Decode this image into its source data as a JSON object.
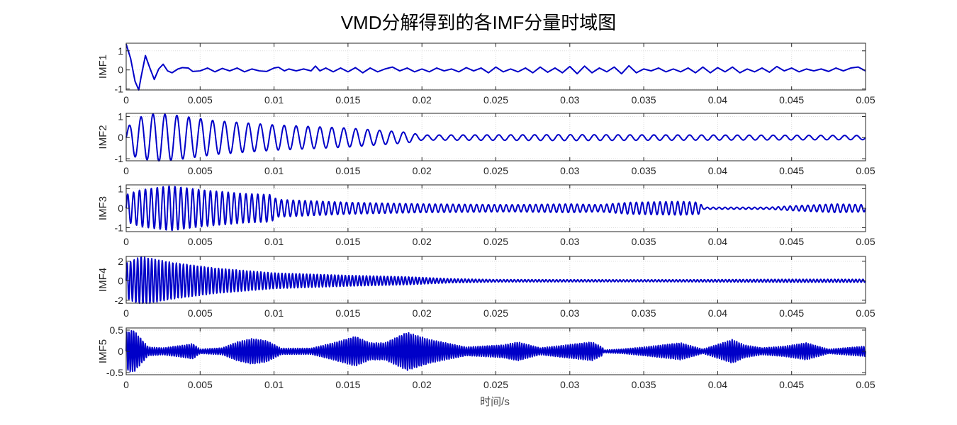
{
  "figure": {
    "title": "VMD分解得到的各IMF分量时域图",
    "xlabel": "时间/s"
  },
  "chart_data": [
    {
      "type": "line",
      "ylabel": "IMF1",
      "color": "#0000c8",
      "xlim": [
        0,
        0.05
      ],
      "ylim": [
        -1.05,
        1.4
      ],
      "yticks": [
        -1,
        0,
        1
      ],
      "xticks": [
        0,
        0.005,
        0.01,
        0.015,
        0.02,
        0.025,
        0.03,
        0.035,
        0.04,
        0.045,
        0.05
      ],
      "grid": true,
      "series": [
        {
          "x_start": 0,
          "x_end": 0.05,
          "points": [
            [
              0,
              1.35
            ],
            [
              0.0003,
              0.6
            ],
            [
              0.0006,
              -0.6
            ],
            [
              0.00085,
              -1.05
            ],
            [
              0.001,
              -0.4
            ],
            [
              0.0013,
              0.75
            ],
            [
              0.0016,
              0.1
            ],
            [
              0.0019,
              -0.5
            ],
            [
              0.0022,
              0.05
            ],
            [
              0.0025,
              0.3
            ],
            [
              0.0028,
              -0.05
            ],
            [
              0.0031,
              -0.15
            ],
            [
              0.0035,
              0.05
            ],
            [
              0.0038,
              0.12
            ],
            [
              0.0042,
              0.1
            ],
            [
              0.0045,
              -0.08
            ],
            [
              0.005,
              -0.05
            ],
            [
              0.0055,
              0.1
            ],
            [
              0.006,
              -0.1
            ],
            [
              0.0065,
              0.08
            ],
            [
              0.007,
              -0.05
            ],
            [
              0.0075,
              0.1
            ],
            [
              0.008,
              -0.1
            ],
            [
              0.0085,
              0.05
            ],
            [
              0.009,
              -0.05
            ],
            [
              0.0095,
              -0.08
            ],
            [
              0.01,
              0.1
            ],
            [
              0.0103,
              0.14
            ],
            [
              0.0107,
              -0.05
            ],
            [
              0.011,
              0.05
            ],
            [
              0.0115,
              -0.05
            ],
            [
              0.012,
              0.05
            ],
            [
              0.0125,
              -0.05
            ],
            [
              0.0128,
              0.2
            ],
            [
              0.0131,
              -0.05
            ],
            [
              0.0135,
              0.1
            ],
            [
              0.014,
              -0.1
            ],
            [
              0.0145,
              0.1
            ],
            [
              0.015,
              -0.1
            ],
            [
              0.0155,
              0.12
            ],
            [
              0.016,
              -0.15
            ],
            [
              0.0165,
              0.1
            ],
            [
              0.017,
              -0.1
            ],
            [
              0.0175,
              0.05
            ],
            [
              0.018,
              0.15
            ],
            [
              0.0185,
              -0.05
            ],
            [
              0.019,
              0.1
            ],
            [
              0.0195,
              -0.1
            ],
            [
              0.02,
              0.05
            ],
            [
              0.0205,
              -0.1
            ],
            [
              0.021,
              0.1
            ],
            [
              0.0215,
              -0.05
            ],
            [
              0.022,
              0.05
            ],
            [
              0.0225,
              -0.1
            ],
            [
              0.023,
              0.12
            ],
            [
              0.0235,
              -0.05
            ],
            [
              0.024,
              0.1
            ],
            [
              0.0245,
              -0.15
            ],
            [
              0.025,
              0.15
            ],
            [
              0.0255,
              -0.1
            ],
            [
              0.026,
              0.05
            ],
            [
              0.0265,
              -0.1
            ],
            [
              0.027,
              0.1
            ],
            [
              0.0275,
              -0.15
            ],
            [
              0.028,
              0.15
            ],
            [
              0.0285,
              -0.12
            ],
            [
              0.029,
              0.1
            ],
            [
              0.0295,
              -0.15
            ],
            [
              0.03,
              0.18
            ],
            [
              0.0305,
              -0.2
            ],
            [
              0.031,
              0.2
            ],
            [
              0.0315,
              -0.15
            ],
            [
              0.032,
              0.1
            ],
            [
              0.0325,
              -0.1
            ],
            [
              0.033,
              0.15
            ],
            [
              0.0335,
              -0.2
            ],
            [
              0.034,
              0.22
            ],
            [
              0.0345,
              -0.15
            ],
            [
              0.035,
              0.05
            ],
            [
              0.0355,
              -0.05
            ],
            [
              0.036,
              0.1
            ],
            [
              0.0365,
              -0.1
            ],
            [
              0.037,
              0.05
            ],
            [
              0.0375,
              -0.1
            ],
            [
              0.038,
              0.1
            ],
            [
              0.0385,
              -0.15
            ],
            [
              0.039,
              0.15
            ],
            [
              0.0395,
              -0.15
            ],
            [
              0.04,
              0.12
            ],
            [
              0.0405,
              -0.1
            ],
            [
              0.041,
              0.15
            ],
            [
              0.0415,
              -0.15
            ],
            [
              0.042,
              0.05
            ],
            [
              0.0425,
              -0.1
            ],
            [
              0.043,
              0.1
            ],
            [
              0.0435,
              -0.12
            ],
            [
              0.044,
              0.18
            ],
            [
              0.0445,
              -0.05
            ],
            [
              0.045,
              0.1
            ],
            [
              0.0455,
              -0.1
            ],
            [
              0.046,
              0.05
            ],
            [
              0.0465,
              -0.05
            ],
            [
              0.047,
              0.05
            ],
            [
              0.0475,
              -0.08
            ],
            [
              0.048,
              0.1
            ],
            [
              0.0485,
              -0.05
            ],
            [
              0.049,
              0.1
            ],
            [
              0.0495,
              0.15
            ],
            [
              0.05,
              -0.05
            ]
          ]
        }
      ]
    },
    {
      "type": "line",
      "ylabel": "IMF2",
      "color": "#0000c8",
      "xlim": [
        0,
        0.05
      ],
      "ylim": [
        -1.1,
        1.15
      ],
      "yticks": [
        -1,
        0,
        1
      ],
      "xticks": [
        0,
        0.005,
        0.01,
        0.015,
        0.02,
        0.025,
        0.03,
        0.035,
        0.04,
        0.045,
        0.05
      ],
      "grid": true,
      "series": [
        {
          "envelope": [
            [
              0,
              0.35
            ],
            [
              0.0005,
              0.9
            ],
            [
              0.002,
              1.15
            ],
            [
              0.0035,
              1.05
            ],
            [
              0.006,
              0.8
            ],
            [
              0.01,
              0.6
            ],
            [
              0.015,
              0.45
            ],
            [
              0.019,
              0.25
            ],
            [
              0.02,
              0.12
            ],
            [
              0.03,
              0.14
            ],
            [
              0.04,
              0.12
            ],
            [
              0.05,
              0.1
            ]
          ],
          "cycles": 62,
          "x_start": 0,
          "x_end": 0.05
        }
      ]
    },
    {
      "type": "line",
      "ylabel": "IMF3",
      "color": "#0000c8",
      "xlim": [
        0,
        0.05
      ],
      "ylim": [
        -1.2,
        1.2
      ],
      "yticks": [
        -1,
        0,
        1
      ],
      "xticks": [
        0,
        0.005,
        0.01,
        0.015,
        0.02,
        0.025,
        0.03,
        0.035,
        0.04,
        0.045,
        0.05
      ],
      "grid": true,
      "series": [
        {
          "envelope": [
            [
              0,
              0.7
            ],
            [
              0.001,
              0.95
            ],
            [
              0.003,
              1.15
            ],
            [
              0.005,
              0.95
            ],
            [
              0.008,
              0.75
            ],
            [
              0.0098,
              0.7
            ],
            [
              0.0102,
              0.45
            ],
            [
              0.015,
              0.3
            ],
            [
              0.018,
              0.25
            ],
            [
              0.02,
              0.22
            ],
            [
              0.026,
              0.18
            ],
            [
              0.03,
              0.22
            ],
            [
              0.032,
              0.18
            ],
            [
              0.034,
              0.3
            ],
            [
              0.0375,
              0.35
            ],
            [
              0.0388,
              0.3
            ],
            [
              0.039,
              0.05
            ],
            [
              0.0435,
              0.05
            ],
            [
              0.045,
              0.12
            ],
            [
              0.048,
              0.22
            ],
            [
              0.05,
              0.18
            ]
          ],
          "cycles": 125,
          "x_start": 0,
          "x_end": 0.05
        }
      ]
    },
    {
      "type": "line",
      "ylabel": "IMF4",
      "color": "#0000c8",
      "xlim": [
        0,
        0.05
      ],
      "ylim": [
        -2.3,
        2.5
      ],
      "yticks": [
        -2,
        0,
        2
      ],
      "xticks": [
        0,
        0.005,
        0.01,
        0.015,
        0.02,
        0.025,
        0.03,
        0.035,
        0.04,
        0.045,
        0.05
      ],
      "grid": true,
      "series": [
        {
          "envelope": [
            [
              0,
              1.8
            ],
            [
              0.001,
              2.5
            ],
            [
              0.003,
              1.9
            ],
            [
              0.006,
              1.3
            ],
            [
              0.01,
              0.8
            ],
            [
              0.015,
              0.55
            ],
            [
              0.019,
              0.4
            ],
            [
              0.022,
              0.2
            ],
            [
              0.025,
              0.12
            ],
            [
              0.035,
              0.1
            ],
            [
              0.04,
              0.12
            ],
            [
              0.045,
              0.15
            ],
            [
              0.05,
              0.15
            ]
          ],
          "cycles": 210,
          "x_start": 0,
          "x_end": 0.05
        }
      ]
    },
    {
      "type": "line",
      "ylabel": "IMF5",
      "color": "#0000c8",
      "xlim": [
        0,
        0.05
      ],
      "ylim": [
        -0.55,
        0.55
      ],
      "yticks": [
        -0.5,
        0,
        0.5
      ],
      "xticks": [
        0,
        0.005,
        0.01,
        0.015,
        0.02,
        0.025,
        0.03,
        0.035,
        0.04,
        0.045,
        0.05
      ],
      "grid": true,
      "series": [
        {
          "envelope": [
            [
              0,
              0.45
            ],
            [
              0.0005,
              0.5
            ],
            [
              0.0015,
              0.1
            ],
            [
              0.0025,
              0.08
            ],
            [
              0.004,
              0.15
            ],
            [
              0.0045,
              0.18
            ],
            [
              0.005,
              0.05
            ],
            [
              0.0065,
              0.08
            ],
            [
              0.0075,
              0.22
            ],
            [
              0.0085,
              0.3
            ],
            [
              0.0095,
              0.25
            ],
            [
              0.0105,
              0.07
            ],
            [
              0.0125,
              0.07
            ],
            [
              0.014,
              0.2
            ],
            [
              0.0155,
              0.35
            ],
            [
              0.0165,
              0.2
            ],
            [
              0.0175,
              0.2
            ],
            [
              0.019,
              0.45
            ],
            [
              0.0205,
              0.28
            ],
            [
              0.023,
              0.1
            ],
            [
              0.0255,
              0.15
            ],
            [
              0.0265,
              0.22
            ],
            [
              0.028,
              0.08
            ],
            [
              0.0305,
              0.18
            ],
            [
              0.0315,
              0.22
            ],
            [
              0.0322,
              0.1
            ],
            [
              0.0323,
              0.03
            ],
            [
              0.0335,
              0.05
            ],
            [
              0.035,
              0.1
            ],
            [
              0.0375,
              0.2
            ],
            [
              0.039,
              0.05
            ],
            [
              0.0405,
              0.22
            ],
            [
              0.041,
              0.28
            ],
            [
              0.0418,
              0.15
            ],
            [
              0.043,
              0.08
            ],
            [
              0.0445,
              0.12
            ],
            [
              0.046,
              0.2
            ],
            [
              0.0475,
              0.05
            ],
            [
              0.05,
              0.12
            ]
          ],
          "cycles": 320,
          "x_start": 0,
          "x_end": 0.05
        }
      ]
    }
  ]
}
